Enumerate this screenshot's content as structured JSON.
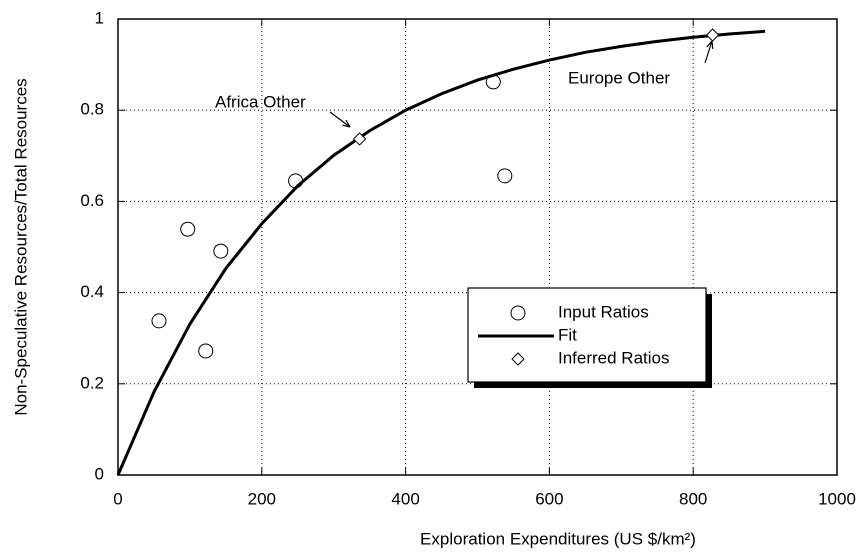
{
  "chart_data": {
    "type": "scatter",
    "xlabel": "Exploration Expenditures (US $/km²)",
    "ylabel": "Non-Speculative Resources/Total Resources",
    "xlim": [
      0,
      1000
    ],
    "xticks": [
      0,
      200,
      400,
      600,
      800,
      1000
    ],
    "ylim": [
      0,
      1
    ],
    "yticks": [
      0,
      0.2,
      0.4,
      0.6,
      0.8,
      1
    ],
    "grid": true,
    "legend": "lower right",
    "series": [
      {
        "name": "Input Ratios",
        "marker": "circle",
        "color": "#000000",
        "x": [
          57,
          97,
          122,
          143,
          247,
          522,
          538
        ],
        "values": [
          0.338,
          0.539,
          0.272,
          0.491,
          0.645,
          0.862,
          0.656
        ]
      },
      {
        "name": "Fit",
        "marker": "line",
        "color": "#000000",
        "x": [
          0,
          50,
          100,
          150,
          200,
          250,
          300,
          350,
          400,
          450,
          500,
          550,
          600,
          650,
          700,
          750,
          800,
          850,
          900
        ],
        "values": [
          0,
          0.182,
          0.331,
          0.453,
          0.551,
          0.634,
          0.701,
          0.755,
          0.8,
          0.836,
          0.866,
          0.89,
          0.91,
          0.927,
          0.94,
          0.951,
          0.96,
          0.967,
          0.973
        ]
      },
      {
        "name": "Inferred Ratios",
        "marker": "diamond",
        "color": "#000000",
        "x": [
          336,
          827
        ],
        "values": [
          0.737,
          0.965
        ]
      }
    ],
    "annotations": [
      {
        "text": "Africa Other"
      },
      {
        "text": "Europe Other"
      }
    ]
  }
}
